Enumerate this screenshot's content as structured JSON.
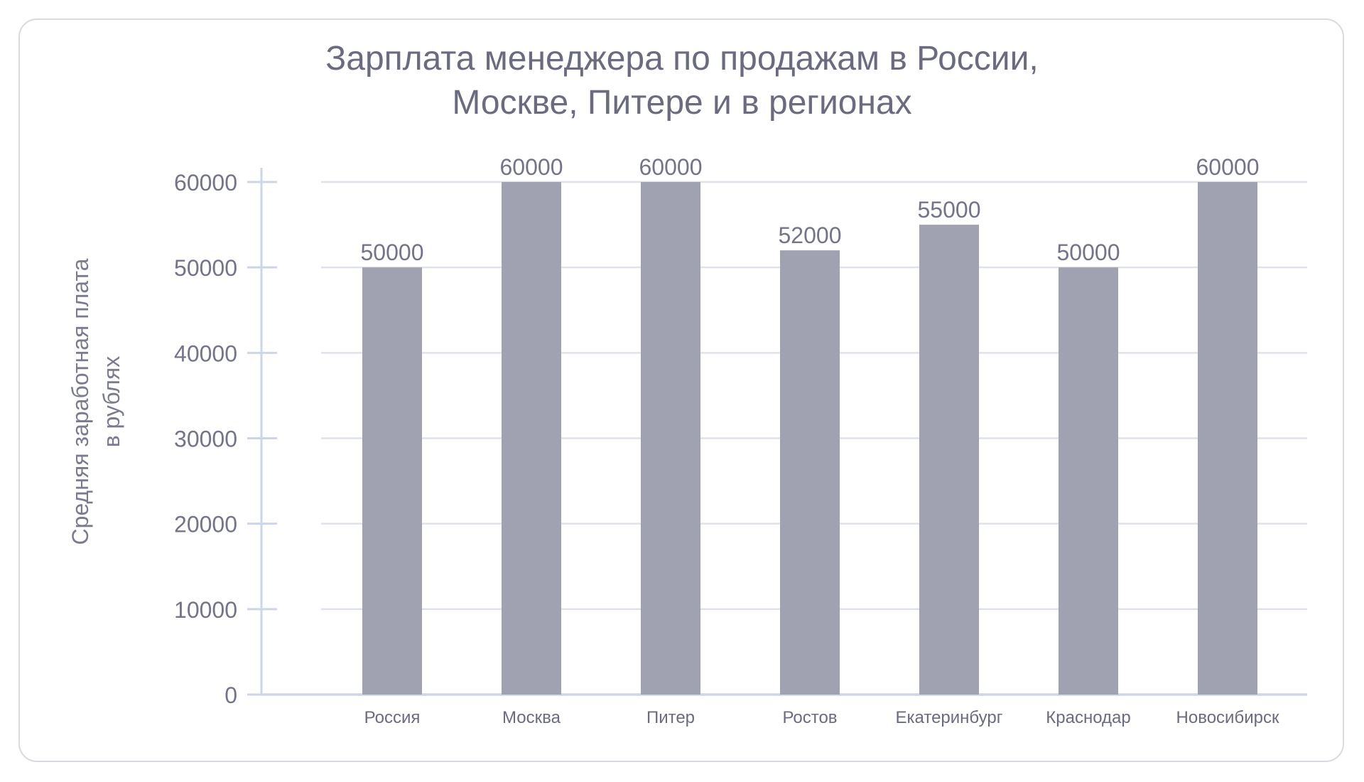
{
  "chart_data": {
    "type": "bar",
    "title": "Зарплата менеджера по продажам в России,",
    "subtitle": "Москве, Питере и в регионах",
    "ylabel": [
      "Средняя заработная плата",
      "в рублях"
    ],
    "xlabel": "",
    "categories": [
      "Россия",
      "Москва",
      "Питер",
      "Ростов",
      "Екатеринбург",
      "Краснодар",
      "Новосибирск"
    ],
    "values": [
      50000,
      60000,
      60000,
      52000,
      55000,
      50000,
      60000
    ],
    "value_labels": [
      "50000",
      "60000",
      "60000",
      "52000",
      "55000",
      "50000",
      "60000"
    ],
    "ylim": [
      0,
      60000
    ],
    "yticks": [
      0,
      10000,
      20000,
      30000,
      40000,
      50000,
      60000
    ],
    "ytick_labels": [
      "0",
      "10000",
      "20000",
      "30000",
      "40000",
      "50000",
      "60000"
    ],
    "grid": true,
    "colors": {
      "bar": "#a0a1b1",
      "grid": "#dfe2ea",
      "axis": "#cdd6e6",
      "text": "#6b6b80",
      "tick_text": "#747488"
    }
  }
}
